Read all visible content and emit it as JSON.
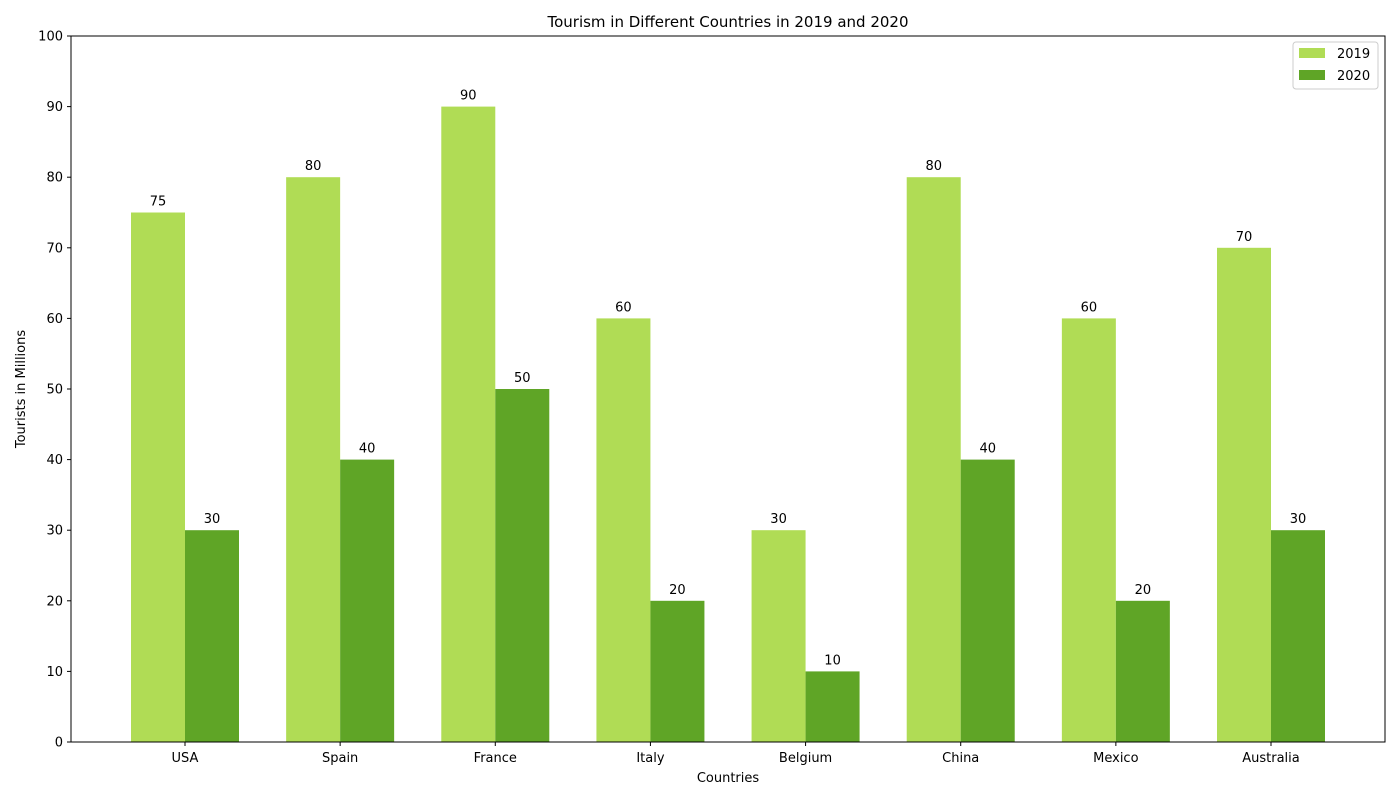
{
  "chart_data": {
    "type": "bar",
    "title": "Tourism in Different Countries in 2019 and 2020",
    "xlabel": "Countries",
    "ylabel": "Tourists in Millions",
    "categories": [
      "USA",
      "Spain",
      "France",
      "Italy",
      "Belgium",
      "China",
      "Mexico",
      "Australia"
    ],
    "series": [
      {
        "name": "2019",
        "color": "#b0dc55",
        "values": [
          75,
          80,
          90,
          60,
          30,
          80,
          60,
          70
        ]
      },
      {
        "name": "2020",
        "color": "#5fa526",
        "values": [
          30,
          40,
          50,
          20,
          10,
          40,
          20,
          30
        ]
      }
    ],
    "ylim": [
      0,
      100
    ],
    "yticks": [
      0,
      10,
      20,
      30,
      40,
      50,
      60,
      70,
      80,
      90,
      100
    ],
    "grid": false,
    "legend_position": "top-right",
    "data_labels": true
  }
}
